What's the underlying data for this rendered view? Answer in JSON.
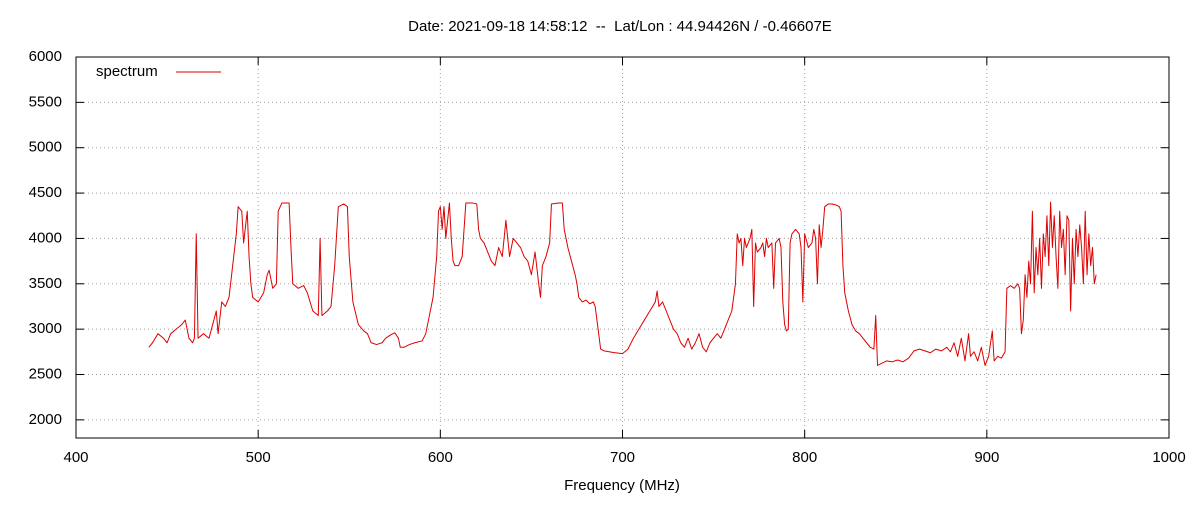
{
  "chart_data": {
    "type": "line",
    "title": "Date: 2021-09-18 14:58:12  --  Lat/Lon : 44.94426N / -0.46607E",
    "xlabel": "Frequency (MHz)",
    "xlim": [
      400,
      1000
    ],
    "xticks": [
      400,
      500,
      600,
      700,
      800,
      900,
      1000
    ],
    "ylim": [
      1800,
      6000
    ],
    "yticks": [
      2000,
      2500,
      3000,
      3500,
      4000,
      4500,
      5000,
      5500,
      6000
    ],
    "grid": true,
    "legend": "top left",
    "x": [
      440,
      442,
      445,
      448,
      450,
      452,
      455,
      458,
      460,
      462,
      464,
      465,
      466,
      467,
      470,
      473,
      475,
      477,
      478,
      480,
      482,
      484,
      486,
      488,
      489,
      491,
      492,
      494,
      495,
      496,
      497,
      500,
      503,
      505,
      506,
      508,
      510,
      511,
      513,
      517,
      518,
      519,
      522,
      525,
      527,
      530,
      533,
      534,
      535,
      538,
      540,
      542,
      544,
      547,
      549,
      550,
      552,
      555,
      558,
      560,
      562,
      565,
      568,
      570,
      573,
      575,
      577,
      578,
      580,
      583,
      586,
      590,
      592,
      594,
      596,
      598,
      599,
      600,
      601,
      602,
      603,
      604,
      605,
      606,
      607,
      608,
      610,
      612,
      614,
      618,
      620,
      621,
      622,
      624,
      626,
      628,
      630,
      632,
      634,
      636,
      638,
      640,
      642,
      644,
      646,
      648,
      650,
      652,
      654,
      655,
      656,
      658,
      660,
      661,
      665,
      667,
      668,
      670,
      672,
      674,
      675,
      676,
      678,
      680,
      682,
      684,
      685,
      688,
      690,
      693,
      696,
      700,
      703,
      706,
      709,
      712,
      715,
      718,
      719,
      720,
      722,
      724,
      726,
      728,
      730,
      732,
      734,
      736,
      738,
      740,
      742,
      744,
      746,
      748,
      750,
      752,
      754,
      756,
      758,
      760,
      762,
      763,
      764,
      765,
      766,
      767,
      768,
      769,
      770,
      771,
      772,
      773,
      774,
      776,
      777,
      778,
      779,
      780,
      782,
      783,
      784,
      786,
      787,
      788,
      789,
      790,
      791,
      792,
      793,
      795,
      797,
      798,
      799,
      800,
      802,
      804,
      805,
      806,
      807,
      808,
      809,
      810,
      811,
      813,
      815,
      817,
      819,
      820,
      821,
      822,
      824,
      826,
      828,
      830,
      832,
      834,
      836,
      838,
      839,
      840,
      842,
      845,
      848,
      851,
      854,
      857,
      860,
      863,
      866,
      869,
      872,
      875,
      878,
      880,
      882,
      884,
      886,
      888,
      890,
      891,
      893,
      895,
      897,
      899,
      901,
      903,
      904,
      906,
      908,
      910,
      911,
      913,
      915,
      917,
      918,
      919,
      920,
      921,
      922,
      923,
      924,
      925,
      926,
      927,
      928,
      929,
      930,
      931,
      932,
      933,
      934,
      935,
      936,
      937,
      938,
      939,
      940,
      941,
      942,
      943,
      944,
      945,
      946,
      947,
      948,
      949,
      950,
      951,
      952,
      953,
      954,
      955,
      956,
      957,
      958,
      959,
      960
    ],
    "series": [
      {
        "name": "spectrum",
        "color": "#dd0000",
        "values": [
          2800,
          2850,
          2950,
          2900,
          2850,
          2950,
          3000,
          3050,
          3100,
          2900,
          2850,
          2900,
          4050,
          2900,
          2950,
          2900,
          3050,
          3200,
          2950,
          3300,
          3250,
          3350,
          3700,
          4050,
          4350,
          4300,
          3950,
          4300,
          3800,
          3500,
          3350,
          3300,
          3400,
          3600,
          3650,
          3450,
          3500,
          4300,
          4390,
          4390,
          3900,
          3500,
          3450,
          3480,
          3400,
          3200,
          3150,
          4000,
          3150,
          3200,
          3250,
          3700,
          4350,
          4380,
          4350,
          3800,
          3300,
          3050,
          2980,
          2950,
          2850,
          2830,
          2850,
          2900,
          2940,
          2960,
          2900,
          2800,
          2800,
          2830,
          2850,
          2870,
          2950,
          3150,
          3350,
          3800,
          4300,
          4350,
          4100,
          4350,
          4000,
          4200,
          4390,
          4000,
          3750,
          3700,
          3700,
          3800,
          4390,
          4390,
          4380,
          4100,
          4000,
          3950,
          3850,
          3750,
          3700,
          3900,
          3800,
          4200,
          3800,
          4000,
          3950,
          3900,
          3800,
          3750,
          3600,
          3850,
          3500,
          3350,
          3700,
          3800,
          3950,
          4380,
          4390,
          4390,
          4100,
          3900,
          3750,
          3600,
          3500,
          3350,
          3300,
          3320,
          3280,
          3300,
          3250,
          2780,
          2760,
          2750,
          2740,
          2730,
          2780,
          2900,
          3000,
          3100,
          3200,
          3300,
          3420,
          3250,
          3300,
          3200,
          3100,
          3000,
          2950,
          2850,
          2800,
          2900,
          2780,
          2850,
          2950,
          2800,
          2750,
          2850,
          2900,
          2950,
          2900,
          3000,
          3100,
          3200,
          3500,
          4050,
          3950,
          4000,
          3700,
          4000,
          3900,
          3950,
          4000,
          4100,
          3250,
          3950,
          3850,
          3900,
          3950,
          3800,
          4000,
          3900,
          3950,
          3450,
          3950,
          4000,
          3900,
          3300,
          3050,
          2980,
          3000,
          3950,
          4050,
          4100,
          4050,
          3900,
          3300,
          4050,
          3900,
          3950,
          4100,
          4000,
          3500,
          4150,
          3900,
          4100,
          4350,
          4380,
          4380,
          4370,
          4350,
          4300,
          3700,
          3400,
          3200,
          3050,
          2980,
          2950,
          2900,
          2850,
          2800,
          2780,
          3150,
          2600,
          2620,
          2650,
          2640,
          2660,
          2640,
          2680,
          2760,
          2780,
          2760,
          2740,
          2780,
          2760,
          2800,
          2750,
          2850,
          2700,
          2900,
          2650,
          2950,
          2700,
          2750,
          2650,
          2800,
          2600,
          2700,
          2980,
          2650,
          2700,
          2680,
          2750,
          3450,
          3480,
          3450,
          3500,
          3450,
          2950,
          3100,
          3600,
          3350,
          3750,
          3500,
          4300,
          3400,
          3900,
          3600,
          4000,
          3450,
          4050,
          3800,
          4250,
          3700,
          4400,
          3900,
          4250,
          3800,
          3450,
          4300,
          3900,
          4100,
          3600,
          4250,
          4200,
          3200,
          4000,
          3500,
          4100,
          3800,
          4150,
          3900,
          3500,
          4300,
          3600,
          4050,
          3700,
          3900,
          3500,
          3600
        ]
      }
    ]
  }
}
